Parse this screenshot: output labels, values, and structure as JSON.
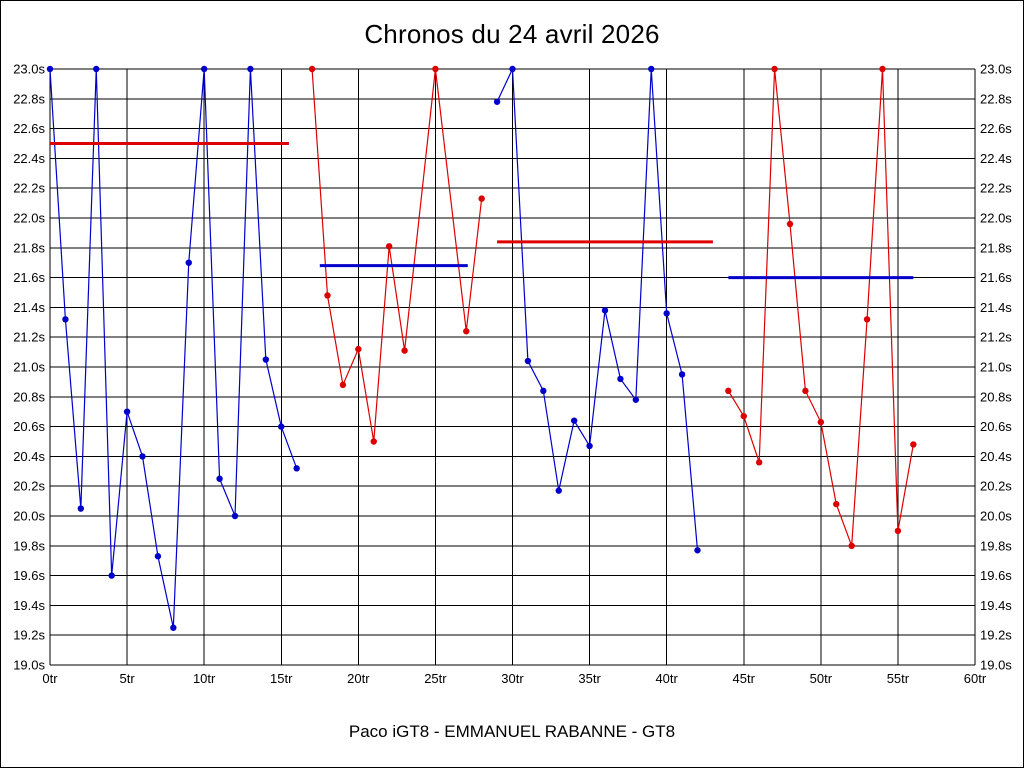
{
  "title": "Chronos du 24 avril 2026",
  "caption": "Paco iGT8 - EMMANUEL RABANNE - GT8",
  "chart_data": {
    "type": "line",
    "title": "Chronos du 24 avril 2026",
    "subtitle": "Paco iGT8 - EMMANUEL RABANNE - GT8",
    "xlabel": "",
    "ylabel": "",
    "xlim": [
      0,
      60
    ],
    "ylim": [
      19.0,
      23.0
    ],
    "x_tick_step": 5,
    "y_tick_step": 0.2,
    "x_tick_suffix": "tr",
    "y_tick_suffix": "s",
    "grid": true,
    "legend": "none",
    "colors": {
      "blue": "#0000cc",
      "red": "#dd0000",
      "grid": "#000000"
    },
    "series": [
      {
        "name": "stint-1-blue",
        "color": "#0000cc",
        "points": [
          [
            0,
            23.0
          ],
          [
            1,
            21.32
          ],
          [
            2,
            20.05
          ],
          [
            3,
            23.0
          ],
          [
            4,
            19.6
          ],
          [
            5,
            20.7
          ],
          [
            6,
            20.4
          ],
          [
            7,
            19.73
          ],
          [
            8,
            19.25
          ],
          [
            9,
            21.7
          ],
          [
            10,
            23.0
          ],
          [
            11,
            20.25
          ],
          [
            12,
            20.0
          ],
          [
            13,
            23.0
          ],
          [
            14,
            21.05
          ],
          [
            15,
            20.6
          ],
          [
            16,
            20.32
          ]
        ]
      },
      {
        "name": "stint-2-red",
        "color": "#dd0000",
        "points": [
          [
            17,
            23.0
          ],
          [
            18,
            21.48
          ],
          [
            19,
            20.88
          ],
          [
            20,
            21.12
          ],
          [
            21,
            20.5
          ],
          [
            22,
            21.81
          ],
          [
            23,
            21.11
          ],
          [
            25,
            23.0
          ],
          [
            27,
            21.24
          ],
          [
            28,
            22.13
          ]
        ]
      },
      {
        "name": "stint-3-blue",
        "color": "#0000cc",
        "points": [
          [
            29,
            22.78
          ],
          [
            30,
            23.0
          ],
          [
            31,
            21.04
          ],
          [
            32,
            20.84
          ],
          [
            33,
            20.17
          ],
          [
            34,
            20.64
          ],
          [
            35,
            20.47
          ],
          [
            36,
            21.38
          ],
          [
            37,
            20.92
          ],
          [
            38,
            20.78
          ],
          [
            39,
            23.0
          ],
          [
            40,
            21.36
          ],
          [
            41,
            20.95
          ],
          [
            42,
            19.77
          ]
        ]
      },
      {
        "name": "stint-4-red",
        "color": "#dd0000",
        "points": [
          [
            44,
            20.84
          ],
          [
            45,
            20.67
          ],
          [
            46,
            20.36
          ],
          [
            47,
            23.0
          ],
          [
            48,
            21.96
          ],
          [
            49,
            20.84
          ],
          [
            50,
            20.63
          ],
          [
            51,
            20.08
          ],
          [
            52,
            19.8
          ],
          [
            53,
            21.32
          ],
          [
            54,
            23.0
          ],
          [
            55,
            19.9
          ],
          [
            56,
            20.48
          ]
        ]
      }
    ],
    "average_lines": [
      {
        "name": "avg-stint-1",
        "color": "#dd0000",
        "y": 22.5,
        "x1": 0,
        "x2": 15.5
      },
      {
        "name": "avg-stint-2",
        "color": "#0000cc",
        "y": 21.68,
        "x1": 17.5,
        "x2": 27.1
      },
      {
        "name": "avg-stint-3",
        "color": "#dd0000",
        "y": 21.84,
        "x1": 29,
        "x2": 43
      },
      {
        "name": "avg-stint-4",
        "color": "#0000cc",
        "y": 21.6,
        "x1": 44,
        "x2": 56
      }
    ]
  }
}
